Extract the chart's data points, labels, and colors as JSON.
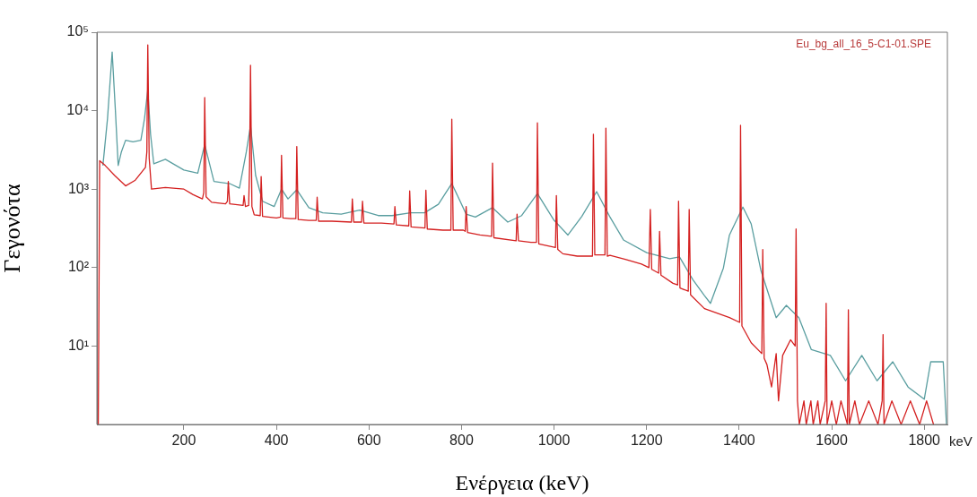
{
  "chart_data": {
    "type": "line",
    "xlabel": "Ενέργεια (keV)",
    "ylabel": "Γεγονότα",
    "annotations": [
      "Eu_bg_all_16_5-C1-01.SPE",
      "keV"
    ],
    "xlim": [
      12,
      1850
    ],
    "xticks": [
      200,
      400,
      600,
      800,
      1000,
      1200,
      1400,
      1600,
      1800
    ],
    "ylim": [
      1,
      100000
    ],
    "yticks": [
      {
        "value": 10,
        "label": "10¹"
      },
      {
        "value": 100,
        "label": "10²"
      },
      {
        "value": 1000,
        "label": "10³"
      },
      {
        "value": 10000,
        "label": "10⁴"
      },
      {
        "value": 100000,
        "label": "10⁵"
      }
    ],
    "log": "y",
    "grid": false,
    "legend": false,
    "marker": "none",
    "line_style": "solid",
    "series": [
      {
        "color": "#5a9ea0",
        "x": [
          25,
          35,
          45,
          52,
          58,
          65,
          74,
          90,
          107,
          115,
          122,
          128,
          135,
          160,
          200,
          230,
          245,
          265,
          300,
          320,
          335,
          344,
          355,
          370,
          395,
          411,
          425,
          444,
          470,
          500,
          540,
          580,
          620,
          650,
          690,
          720,
          750,
          779,
          810,
          830,
          867,
          900,
          930,
          964,
          1000,
          1030,
          1060,
          1092,
          1120,
          1150,
          1200,
          1250,
          1271,
          1300,
          1325,
          1338,
          1366,
          1379,
          1408,
          1426,
          1447,
          1480,
          1502,
          1529,
          1556,
          1597,
          1630,
          1665,
          1698,
          1732,
          1765,
          1800,
          1814,
          1841,
          1848
        ],
        "values": [
          2000,
          8000,
          56000,
          10000,
          2000,
          3000,
          4200,
          4000,
          4200,
          8000,
          18600,
          5000,
          2100,
          2400,
          1750,
          1600,
          3700,
          1250,
          1170,
          1030,
          3000,
          6500,
          1500,
          700,
          600,
          1000,
          750,
          980,
          580,
          500,
          480,
          540,
          460,
          460,
          500,
          500,
          640,
          1180,
          480,
          440,
          580,
          380,
          460,
          880,
          400,
          260,
          450,
          930,
          450,
          225,
          155,
          130,
          137,
          70,
          44,
          35,
          99,
          260,
          590,
          360,
          92,
          23,
          33,
          23,
          9,
          7.6,
          3.6,
          7.6,
          3.6,
          6.3,
          3,
          2.1,
          6.3,
          6.3,
          1
        ]
      },
      {
        "color": "#d42020",
        "x": [
          15,
          18,
          30,
          50,
          74,
          95,
          117,
          120,
          122,
          125,
          130,
          160,
          200,
          220,
          240,
          243,
          245,
          248,
          260,
          290,
          294,
          296,
          299,
          328,
          330,
          333,
          340,
          342,
          344,
          347,
          352,
          365,
          367,
          370,
          400,
          409,
          411,
          414,
          430,
          442,
          444,
          447,
          470,
          486,
          488,
          491,
          520,
          562,
          564,
          567,
          584,
          586,
          589,
          627,
          654,
          656,
          659,
          686,
          688,
          691,
          721,
          723,
          726,
          760,
          777,
          779,
          782,
          804,
          808,
          810,
          813,
          840,
          865,
          867,
          870,
          918,
          920,
          923,
          950,
          962,
          964,
          967,
          1003,
          1005,
          1008,
          1019,
          1050,
          1083,
          1085,
          1088,
          1100,
          1110,
          1112,
          1115,
          1121,
          1154,
          1189,
          1205,
          1208,
          1211,
          1226,
          1228,
          1231,
          1257,
          1267,
          1269,
          1272,
          1290,
          1292,
          1295,
          1325,
          1379,
          1401,
          1403,
          1406,
          1426,
          1449,
          1451,
          1454,
          1460,
          1470,
          1480,
          1485,
          1494,
          1511,
          1521,
          1523,
          1526,
          1530,
          1540,
          1545,
          1555,
          1560,
          1570,
          1575,
          1586,
          1588,
          1590,
          1600,
          1610,
          1620,
          1634,
          1636,
          1638,
          1650,
          1660,
          1680,
          1700,
          1709,
          1711,
          1713,
          1730,
          1750,
          1770,
          1790,
          1805,
          1820
        ],
        "values": [
          1,
          2300,
          2000,
          1500,
          1100,
          1300,
          1900,
          3000,
          69000,
          2500,
          1000,
          1050,
          1000,
          850,
          750,
          900,
          14700,
          800,
          680,
          650,
          700,
          1250,
          650,
          620,
          830,
          600,
          620,
          2000,
          38000,
          600,
          470,
          460,
          1450,
          450,
          430,
          440,
          2700,
          430,
          420,
          420,
          3500,
          410,
          400,
          400,
          790,
          390,
          390,
          380,
          750,
          380,
          380,
          700,
          370,
          370,
          360,
          600,
          350,
          340,
          950,
          330,
          320,
          970,
          310,
          300,
          300,
          7800,
          300,
          300,
          290,
          600,
          280,
          260,
          250,
          2150,
          240,
          220,
          480,
          220,
          210,
          210,
          7000,
          200,
          180,
          830,
          170,
          150,
          140,
          140,
          5000,
          145,
          145,
          145,
          6000,
          140,
          143,
          127,
          111,
          100,
          550,
          95,
          85,
          290,
          80,
          63,
          60,
          700,
          55,
          50,
          550,
          45,
          30,
          23,
          20,
          6500,
          18,
          11,
          8,
          170,
          7,
          5.8,
          3,
          8,
          2,
          7.6,
          12,
          10,
          310,
          2,
          1,
          2,
          1,
          2,
          1,
          2,
          1,
          2,
          35,
          1,
          2,
          1,
          2,
          1,
          29,
          1,
          2,
          1,
          2,
          1,
          2,
          14,
          1,
          2,
          1,
          2,
          1,
          2,
          1
        ]
      }
    ]
  }
}
